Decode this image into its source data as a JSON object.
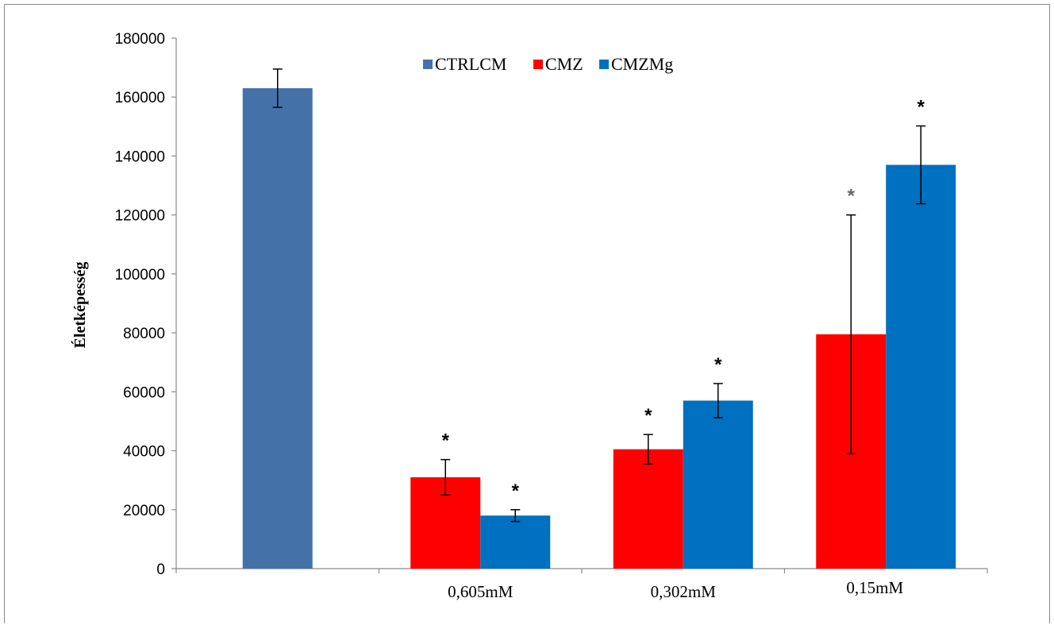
{
  "chart_data": {
    "type": "bar",
    "categories": [
      "",
      "0,605mM",
      "0,302mM",
      "0,15mM"
    ],
    "ylabel": "Életképesség",
    "xlabel": "",
    "ylim": [
      0,
      180000
    ],
    "yticks": [
      0,
      20000,
      40000,
      60000,
      80000,
      100000,
      120000,
      140000,
      160000,
      180000
    ],
    "legend_position": "top-center",
    "grid": false,
    "series": [
      {
        "name": "CTRLCM",
        "color": "#4472a8",
        "values": [
          163000,
          null,
          null,
          null
        ],
        "errors": [
          6500,
          null,
          null,
          null
        ],
        "stars": [
          false,
          false,
          false,
          false
        ]
      },
      {
        "name": "CMZ",
        "color": "#ff0000",
        "values": [
          null,
          31000,
          40500,
          79500
        ],
        "errors": [
          null,
          6000,
          5000,
          40500
        ],
        "stars": [
          false,
          true,
          true,
          true
        ]
      },
      {
        "name": "CMZMg",
        "color": "#0070c0",
        "values": [
          null,
          18000,
          57000,
          137000
        ],
        "errors": [
          null,
          2000,
          5800,
          13200
        ],
        "stars": [
          false,
          true,
          true,
          true
        ]
      }
    ],
    "significance_marker": "*"
  }
}
